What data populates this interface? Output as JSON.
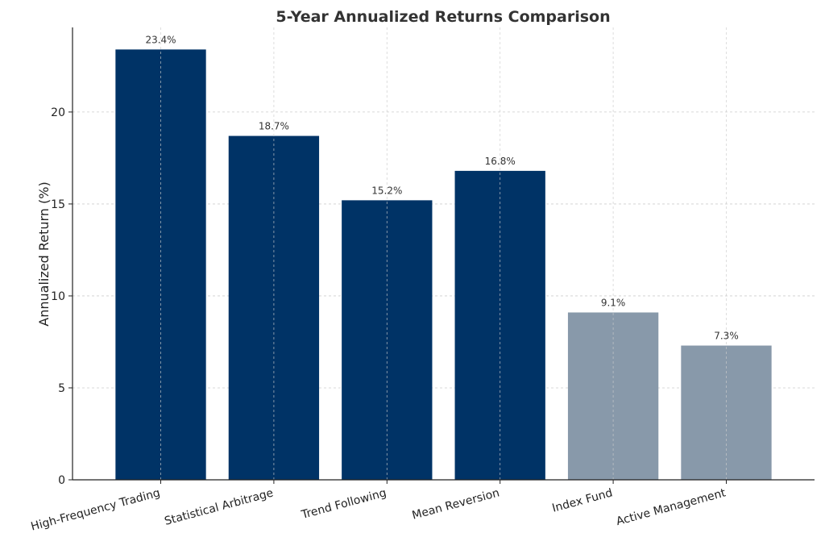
{
  "chart_data": {
    "type": "bar",
    "title": "5-Year Annualized Returns Comparison",
    "xlabel": "",
    "ylabel": "Annualized Return (%)",
    "categories": [
      "High-Frequency Trading",
      "Statistical Arbitrage",
      "Trend Following",
      "Mean Reversion",
      "Index Fund",
      "Active Management"
    ],
    "values": [
      23.4,
      18.7,
      15.2,
      16.8,
      9.1,
      7.3
    ],
    "data_labels": [
      "23.4%",
      "18.7%",
      "15.2%",
      "16.8%",
      "9.1%",
      "7.3%"
    ],
    "bar_colors": [
      "#003366",
      "#003366",
      "#003366",
      "#003366",
      "#8899aa",
      "#8899aa"
    ],
    "ylim": [
      0,
      24.6
    ],
    "yticks": [
      0,
      5,
      10,
      15,
      20
    ],
    "ytick_labels": [
      "0",
      "5",
      "10",
      "15",
      "20"
    ],
    "grid": true,
    "legend": "none"
  }
}
